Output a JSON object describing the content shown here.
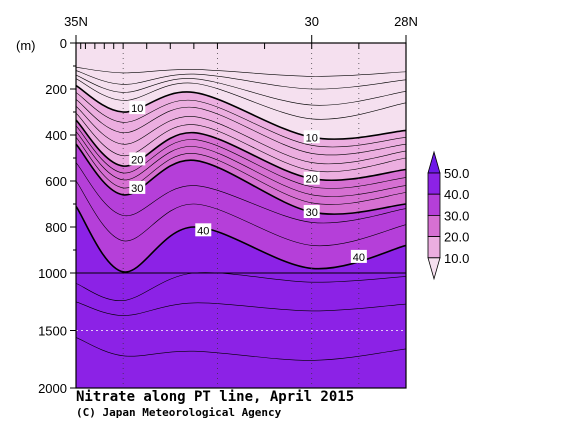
{
  "chart_data": {
    "type": "heatmap",
    "title": "Nitrate along PT line, April 2015",
    "credit": "(C) Japan Meteorological Agency",
    "y_unit_label": "(m)",
    "x_ticks": [
      {
        "label": "35N",
        "lat": 35
      },
      {
        "label": "30",
        "lat": 30
      },
      {
        "label": "28N",
        "lat": 28
      }
    ],
    "xlim": [
      35,
      28
    ],
    "station_lats": [
      34.9,
      34.8,
      34.6,
      34.4,
      34.2,
      34.0,
      33.5,
      33.0,
      32.5,
      32.0,
      31.0,
      30.0,
      29.0,
      28.0
    ],
    "y_ticks": [
      {
        "label": "0",
        "depth": 0
      },
      {
        "label": "200",
        "depth": 200
      },
      {
        "label": "400",
        "depth": 400
      },
      {
        "label": "600",
        "depth": 600
      },
      {
        "label": "800",
        "depth": 800
      },
      {
        "label": "1000",
        "depth": 1000
      },
      {
        "label": "1500",
        "depth": 1500
      },
      {
        "label": "2000",
        "depth": 2000
      }
    ],
    "depth_scale": "upper 0-1000 m linear, 1000-2000 m compressed",
    "colorbar": {
      "labels": [
        "50.0",
        "40.0",
        "30.0",
        "20.0",
        "10.0"
      ],
      "levels": [
        0,
        10,
        20,
        30,
        40,
        50
      ],
      "colors": [
        "#f5e0ef",
        "#ecaee0",
        "#d670d2",
        "#b53fd9",
        "#8c22e6",
        "#6e18e8"
      ]
    },
    "contour_lats": [
      35.0,
      34.0,
      32.5,
      30.0,
      28.0
    ],
    "contours": [
      {
        "level": 2,
        "labeled": false,
        "depths": [
          105,
          130,
          115,
          145,
          125
        ]
      },
      {
        "level": 4,
        "labeled": false,
        "depths": [
          120,
          180,
          135,
          200,
          160
        ]
      },
      {
        "level": 6,
        "labeled": false,
        "depths": [
          140,
          215,
          155,
          270,
          210
        ]
      },
      {
        "level": 8,
        "labeled": false,
        "depths": [
          155,
          250,
          175,
          330,
          260
        ]
      },
      {
        "level": 10,
        "labeled": true,
        "label": "10",
        "depths": [
          185,
          300,
          215,
          410,
          380
        ]
      },
      {
        "level": 12,
        "labeled": false,
        "depths": [
          215,
          345,
          250,
          445,
          410
        ]
      },
      {
        "level": 14,
        "labeled": false,
        "depths": [
          245,
          390,
          280,
          480,
          440
        ]
      },
      {
        "level": 16,
        "labeled": false,
        "depths": [
          275,
          440,
          320,
          520,
          470
        ]
      },
      {
        "level": 18,
        "labeled": false,
        "depths": [
          305,
          490,
          355,
          555,
          500
        ]
      },
      {
        "level": 20,
        "labeled": true,
        "label": "20",
        "depths": [
          335,
          535,
          390,
          590,
          550
        ]
      },
      {
        "level": 22,
        "labeled": false,
        "depths": [
          360,
          565,
          420,
          625,
          585
        ]
      },
      {
        "level": 24,
        "labeled": false,
        "depths": [
          385,
          595,
          450,
          660,
          620
        ]
      },
      {
        "level": 26,
        "labeled": false,
        "depths": [
          410,
          630,
          480,
          695,
          650
        ]
      },
      {
        "level": 30,
        "labeled": true,
        "label": "30",
        "depths": [
          440,
          660,
          510,
          735,
          700
        ]
      },
      {
        "level": 33,
        "labeled": false,
        "depths": [
          520,
          750,
          620,
          780,
          720
        ]
      },
      {
        "level": 36,
        "labeled": false,
        "depths": [
          600,
          860,
          700,
          880,
          790
        ]
      },
      {
        "level": 40,
        "labeled": true,
        "label": "40",
        "depths": [
          710,
          995,
          800,
          980,
          880
        ]
      }
    ],
    "label_positions": [
      {
        "label": "10",
        "lat": 33.7,
        "level": 10
      },
      {
        "label": "20",
        "lat": 33.7,
        "level": 20
      },
      {
        "label": "30",
        "lat": 33.7,
        "level": 30
      },
      {
        "label": "40",
        "lat": 32.3,
        "level": 40
      },
      {
        "label": "10",
        "lat": 30.0,
        "level": 10
      },
      {
        "label": "20",
        "lat": 30.0,
        "level": 20
      },
      {
        "label": "30",
        "lat": 30.0,
        "level": 30
      },
      {
        "label": "40",
        "lat": 29.0,
        "level": 40
      }
    ],
    "deep_contours": [
      {
        "level": 42,
        "depths": [
          1090,
          1240,
          1000,
          1080,
          1030
        ]
      },
      {
        "level": 43,
        "depths": [
          1250,
          1370,
          1260,
          1330,
          1270
        ]
      },
      {
        "level": 44,
        "depths": [
          1560,
          1720,
          1680,
          1760,
          1660
        ]
      }
    ],
    "grid": true
  }
}
